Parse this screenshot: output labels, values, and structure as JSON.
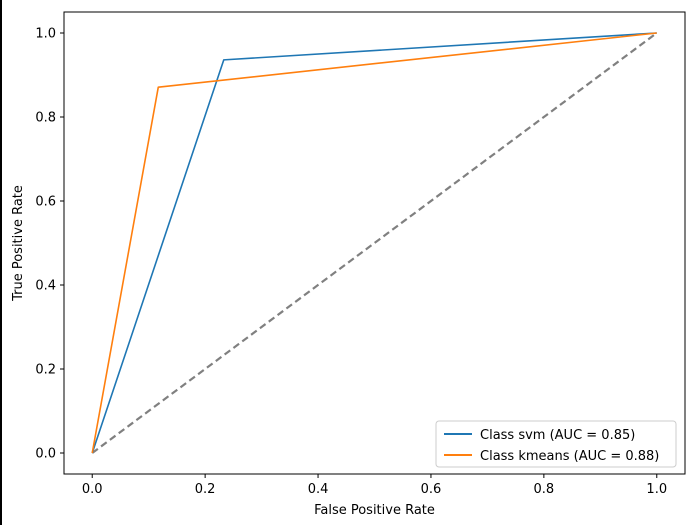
{
  "chart_data": {
    "type": "line",
    "title": "",
    "xlabel": "False Positive Rate",
    "ylabel": "True Positive Rate",
    "xlim": [
      -0.05,
      1.05
    ],
    "ylim": [
      -0.05,
      1.05
    ],
    "xticks": [
      0.0,
      0.2,
      0.4,
      0.6,
      0.8,
      1.0
    ],
    "yticks": [
      0.0,
      0.2,
      0.4,
      0.6,
      0.8,
      1.0
    ],
    "xtick_labels": [
      "0.0",
      "0.2",
      "0.4",
      "0.6",
      "0.8",
      "1.0"
    ],
    "ytick_labels": [
      "0.0",
      "0.2",
      "0.4",
      "0.6",
      "0.8",
      "1.0"
    ],
    "grid": false,
    "legend_position": "bottom-right",
    "series": [
      {
        "name": "Class svm (AUC = 0.85)",
        "color": "#1f77b4",
        "style": "solid",
        "x": [
          0.0,
          0.233,
          1.0
        ],
        "y": [
          0.0,
          0.936,
          1.0
        ]
      },
      {
        "name": "Class kmeans (AUC = 0.88)",
        "color": "#ff7f0e",
        "style": "solid",
        "x": [
          0.0,
          0.117,
          1.0
        ],
        "y": [
          0.0,
          0.871,
          1.0
        ]
      }
    ],
    "reference_line": {
      "color": "#808080",
      "style": "dashed",
      "x": [
        0.0,
        1.0
      ],
      "y": [
        0.0,
        1.0
      ]
    }
  }
}
